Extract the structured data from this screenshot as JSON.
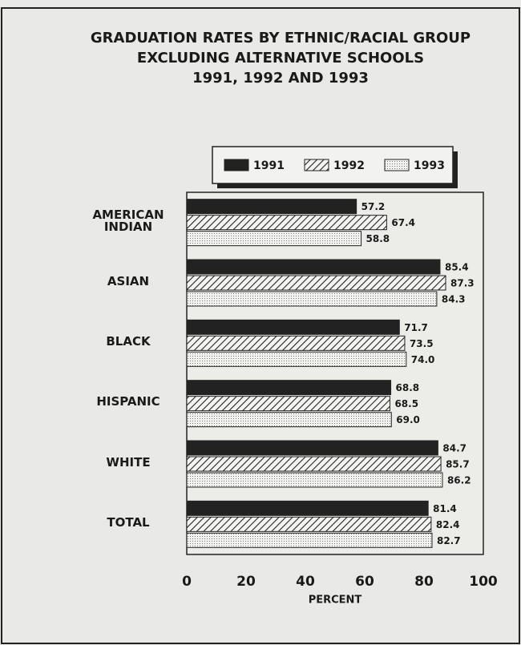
{
  "chart_data": {
    "type": "hbar",
    "title": [
      "GRADUATION RATES BY ETHNIC/RACIAL GROUP",
      "EXCLUDING ALTERNATIVE SCHOOLS",
      "1991, 1992 AND 1993"
    ],
    "categories": [
      "AMERICAN INDIAN",
      "ASIAN",
      "BLACK",
      "HISPANIC",
      "WHITE",
      "TOTAL"
    ],
    "series": [
      {
        "name": "1991",
        "color": "#222222",
        "pattern": "solid",
        "values": [
          57.2,
          85.4,
          71.7,
          68.8,
          84.7,
          81.4
        ],
        "value_labels": [
          "57.2",
          "85.4",
          "71.7",
          "68.8",
          "84.7",
          "81.4"
        ]
      },
      {
        "name": "1992",
        "color": "#222222",
        "pattern": "hatch",
        "values": [
          67.4,
          87.3,
          73.5,
          68.5,
          85.7,
          82.4
        ],
        "value_labels": [
          "67.4",
          "87.3",
          "73.5",
          "68.5",
          "85.7",
          "82.4"
        ]
      },
      {
        "name": "1993",
        "color": "#222222",
        "pattern": "dots",
        "values": [
          58.8,
          84.3,
          74.0,
          69.0,
          86.2,
          82.7
        ],
        "value_labels": [
          "58.8",
          "84.3",
          "74.0",
          "69.0",
          "86.2",
          "82.7"
        ]
      }
    ],
    "xlabel": "PERCENT",
    "xlim": [
      0,
      100
    ],
    "xticks": [
      0,
      20,
      40,
      60,
      80,
      100
    ],
    "grid": false,
    "legend": "top"
  }
}
